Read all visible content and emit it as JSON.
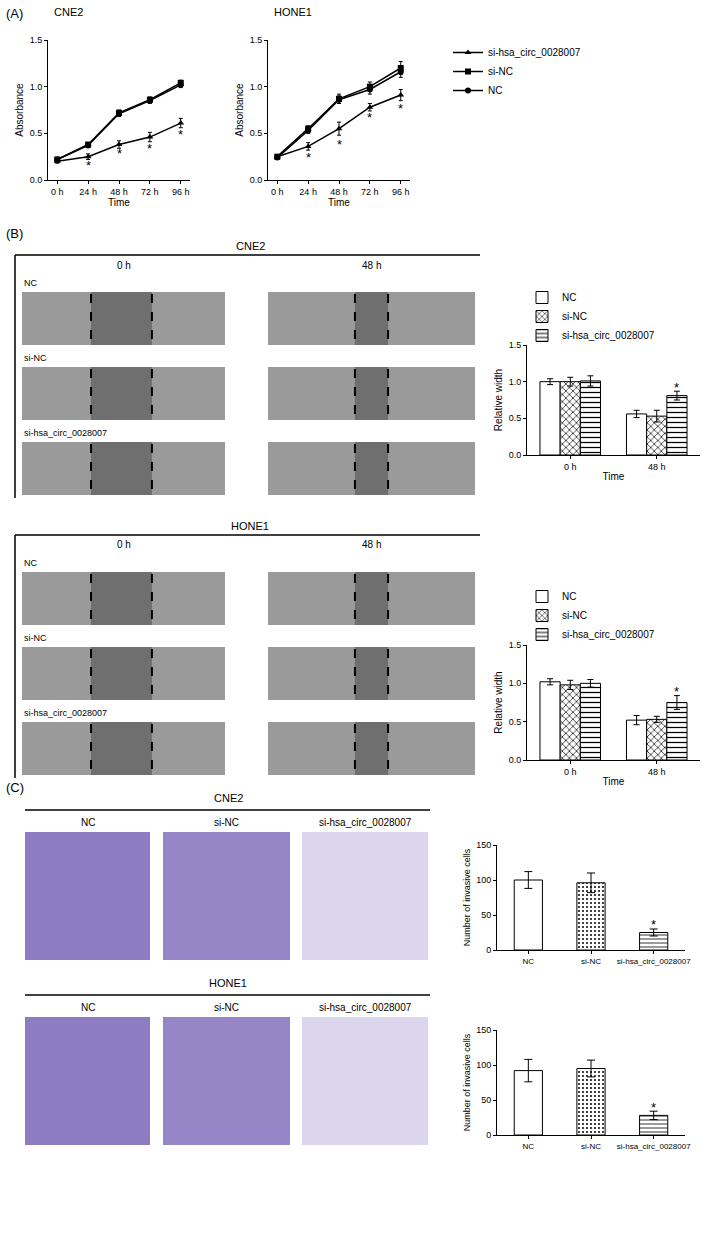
{
  "panel_labels": [
    "(A)",
    "(B)",
    "(C)"
  ],
  "chart_data": [
    {
      "type": "line",
      "title": "CNE2",
      "x_label": "Time",
      "y_label": "Absorbance",
      "categories": [
        "0 h",
        "24 h",
        "48 h",
        "72 h",
        "96 h"
      ],
      "series": [
        {
          "name": "si-hsa_circ_0028007",
          "color": "#000000",
          "marker": "triangle-up",
          "values": [
            0.2,
            0.25,
            0.38,
            0.46,
            0.61
          ],
          "errors": [
            0.02,
            0.03,
            0.04,
            0.05,
            0.05
          ]
        },
        {
          "name": "si-NC",
          "color": "#000000",
          "marker": "square",
          "values": [
            0.22,
            0.38,
            0.72,
            0.86,
            1.04
          ],
          "errors": [
            0.02,
            0.02,
            0.03,
            0.03,
            0.03
          ]
        },
        {
          "name": "NC",
          "color": "#000000",
          "marker": "circle",
          "values": [
            0.22,
            0.37,
            0.71,
            0.85,
            1.02
          ],
          "errors": [
            0.02,
            0.02,
            0.03,
            0.03,
            0.03
          ]
        }
      ],
      "ylim": [
        0,
        1.5
      ],
      "yticks": [
        {
          "value": 0,
          "label": "0.0"
        },
        0.5,
        {
          "value": 1,
          "label": "1.0"
        },
        1.5
      ],
      "annotations": [
        {
          "x": 1,
          "y": 0.16,
          "text": "*"
        },
        {
          "x": 2,
          "y": 0.28,
          "text": "*"
        },
        {
          "x": 3,
          "y": 0.34,
          "text": "*"
        },
        {
          "x": 4,
          "y": 0.49,
          "text": "*"
        }
      ]
    },
    {
      "type": "line",
      "title": "HONE1",
      "x_label": "Time",
      "y_label": "Absorbance",
      "categories": [
        "0 h",
        "24 h",
        "48 h",
        "72 h",
        "96 h"
      ],
      "series": [
        {
          "name": "si-hsa_circ_0028007",
          "color": "#000000",
          "marker": "triangle-up",
          "values": [
            0.25,
            0.36,
            0.55,
            0.78,
            0.91
          ],
          "errors": [
            0.02,
            0.04,
            0.07,
            0.04,
            0.06
          ]
        },
        {
          "name": "si-NC",
          "color": "#000000",
          "marker": "square",
          "values": [
            0.25,
            0.55,
            0.87,
            1.0,
            1.2
          ],
          "errors": [
            0.02,
            0.03,
            0.05,
            0.05,
            0.07
          ]
        },
        {
          "name": "NC",
          "color": "#000000",
          "marker": "circle",
          "values": [
            0.24,
            0.53,
            0.86,
            0.97,
            1.16
          ],
          "errors": [
            0.02,
            0.03,
            0.04,
            0.05,
            0.06
          ]
        }
      ],
      "ylim": [
        0,
        1.5
      ],
      "yticks": [
        {
          "value": 0,
          "label": "0.0"
        },
        0.5,
        {
          "value": 1,
          "label": "1.0"
        },
        1.5
      ],
      "legend": "right",
      "annotations": [
        {
          "x": 1,
          "y": 0.24,
          "text": "*"
        },
        {
          "x": 2,
          "y": 0.38,
          "text": "*"
        },
        {
          "x": 3,
          "y": 0.67,
          "text": "*"
        },
        {
          "x": 4,
          "y": 0.77,
          "text": "*"
        }
      ]
    },
    {
      "type": "bar",
      "x_label": "Time",
      "y_label": "Relative width",
      "categories": [
        "0 h",
        "48 h"
      ],
      "series": [
        {
          "name": "NC",
          "color": "#ffffff",
          "values": [
            1.0,
            0.56
          ],
          "errors": [
            0.04,
            0.05
          ]
        },
        {
          "name": "si-NC",
          "color": "#ffffff",
          "values": [
            1.0,
            0.53
          ],
          "errors": [
            0.06,
            0.08
          ]
        },
        {
          "name": "si-hsa_circ_0028007",
          "color": "#ffffff",
          "values": [
            1.01,
            0.81
          ],
          "errors": [
            0.07,
            0.06
          ]
        }
      ],
      "ylim": [
        0,
        1.5
      ],
      "yticks": [
        {
          "value": 0,
          "label": "0.0"
        },
        0.5,
        {
          "value": 1,
          "label": "1.0"
        },
        1.5
      ],
      "legend": "top",
      "annotations": [
        {
          "x": 1,
          "series": "si-hsa_circ_0028007",
          "y": 0.92,
          "text": "*"
        }
      ]
    },
    {
      "type": "bar",
      "x_label": "Time",
      "y_label": "Relative width",
      "categories": [
        "0 h",
        "48 h"
      ],
      "series": [
        {
          "name": "NC",
          "color": "#ffffff",
          "values": [
            1.02,
            0.52
          ],
          "errors": [
            0.04,
            0.06
          ]
        },
        {
          "name": "si-NC",
          "color": "#ffffff",
          "values": [
            0.98,
            0.53
          ],
          "errors": [
            0.06,
            0.04
          ]
        },
        {
          "name": "si-hsa_circ_0028007",
          "color": "#ffffff",
          "values": [
            1.0,
            0.75
          ],
          "errors": [
            0.05,
            0.09
          ]
        }
      ],
      "ylim": [
        0,
        1.5
      ],
      "yticks": [
        {
          "value": 0,
          "label": "0.0"
        },
        0.5,
        {
          "value": 1,
          "label": "1.0"
        },
        1.5
      ],
      "legend": "top",
      "annotations": [
        {
          "x": 1,
          "series": "si-hsa_circ_0028007",
          "y": 0.9,
          "text": "*"
        }
      ]
    },
    {
      "type": "bar",
      "y_label": "Number of invasive cells",
      "categories": [
        "NC",
        "si-NC",
        "si-hsa_circ_0028007"
      ],
      "values": [
        100,
        96,
        25
      ],
      "errors": [
        12,
        14,
        5
      ],
      "color": "#ffffff",
      "ylim": [
        0,
        150
      ],
      "yticks": [
        0,
        50,
        100,
        150
      ],
      "annotations": [
        {
          "x": 2,
          "y": 36,
          "text": "*"
        }
      ]
    },
    {
      "type": "bar",
      "y_label": "Number of invasive cells",
      "categories": [
        "NC",
        "si-NC",
        "si-hsa_circ_0028007"
      ],
      "values": [
        92,
        95,
        28
      ],
      "errors": [
        16,
        12,
        6
      ],
      "color": "#ffffff",
      "ylim": [
        0,
        150
      ],
      "yticks": [
        0,
        50,
        100,
        150
      ],
      "annotations": [
        {
          "x": 2,
          "y": 40,
          "text": "*"
        }
      ]
    }
  ],
  "micrographs": [
    {
      "title": "CNE2",
      "columns": [
        "0 h",
        "48 h"
      ],
      "rows": [
        "NC",
        "si-NC",
        "si-hsa_circ_0028007"
      ]
    },
    {
      "title": "HONE1",
      "columns": [
        "0 h",
        "48 h"
      ],
      "rows": [
        "NC",
        "si-NC",
        "si-hsa_circ_0028007"
      ]
    },
    {
      "title": "CNE2",
      "columns": [
        "NC",
        "si-NC",
        "si-hsa_circ_0028007"
      ]
    },
    {
      "title": "HONE1",
      "columns": [
        "NC",
        "si-NC",
        "si-hsa_circ_0028007"
      ]
    }
  ]
}
